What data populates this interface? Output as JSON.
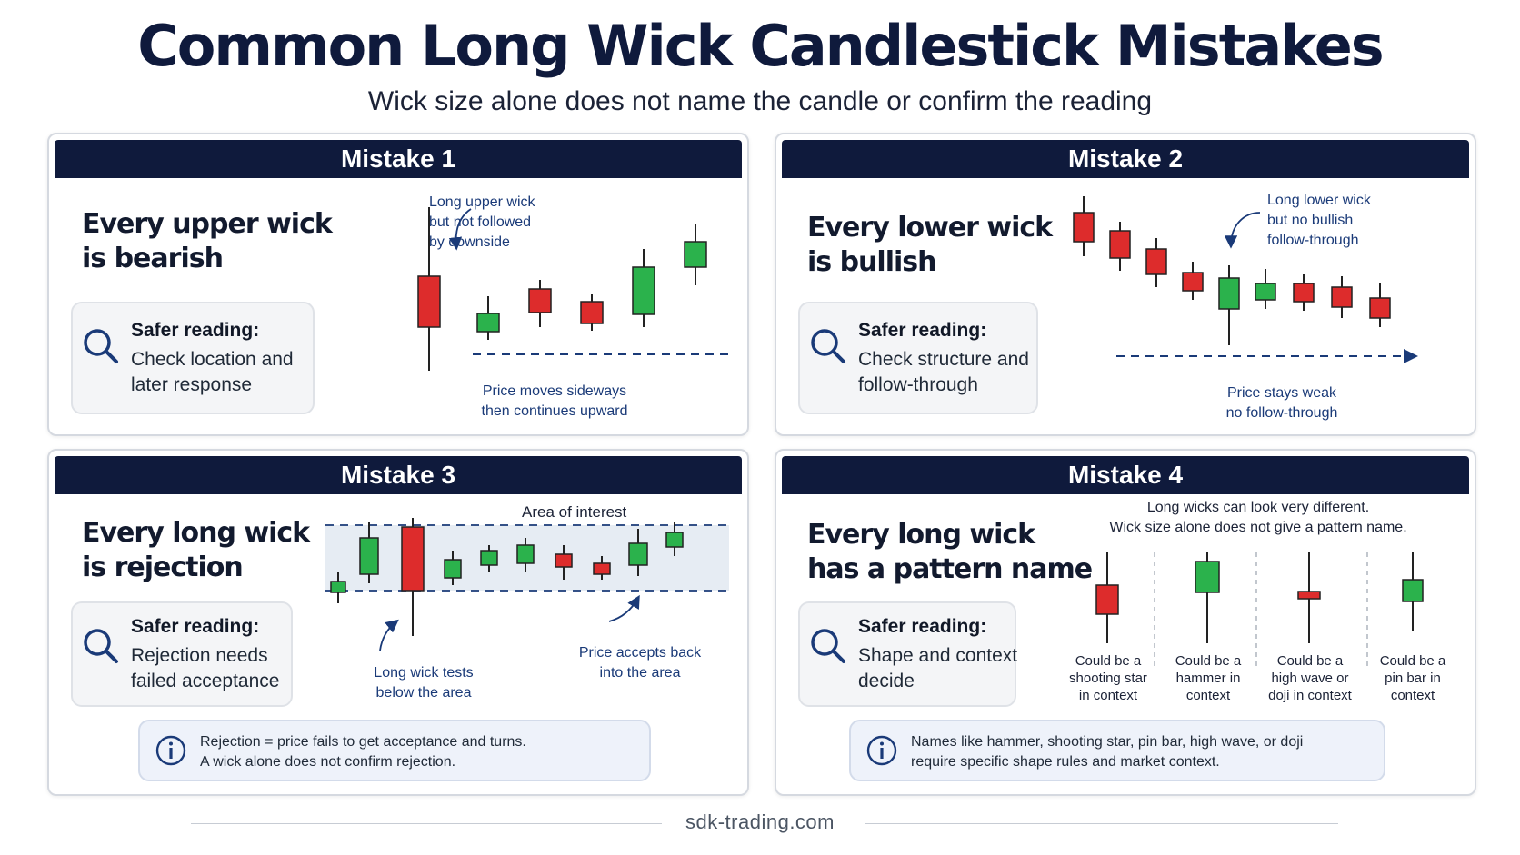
{
  "title": "Common Long Wick Candlestick Mistakes",
  "subtitle": "Wick size alone does not name the candle or confirm the reading",
  "colors": {
    "navy": "#0f1a3c",
    "bullish_green": "#2bb24c",
    "bearish_red": "#dd2c2c",
    "annotation_blue": "#1a3a78",
    "zone_fill": "#e6ecf3"
  },
  "panels": [
    {
      "header": "Mistake 1",
      "claim": [
        "Every upper wick",
        "is bearish"
      ],
      "safer_title": "Safer reading:",
      "safer_body": [
        "Check location and",
        "later response"
      ],
      "annotations": {
        "top_note": [
          "Long upper wick",
          "but not followed",
          "by downside"
        ],
        "bottom_note": [
          "Price moves sideways",
          "then continues upward"
        ]
      }
    },
    {
      "header": "Mistake 2",
      "claim": [
        "Every lower wick",
        "is bullish"
      ],
      "safer_title": "Safer reading:",
      "safer_body": [
        "Check structure and",
        "follow-through"
      ],
      "annotations": {
        "top_note": [
          "Long lower wick",
          "but no bullish",
          "follow-through"
        ],
        "bottom_note": [
          "Price stays weak",
          "no follow-through"
        ]
      }
    },
    {
      "header": "Mistake 3",
      "claim": [
        "Every long wick",
        "is rejection"
      ],
      "safer_title": "Safer reading:",
      "safer_body": [
        "Rejection needs",
        "failed acceptance"
      ],
      "annotations": {
        "zone_label": "Area of interest",
        "left_note": [
          "Long wick tests",
          "below the area"
        ],
        "right_note": [
          "Price accepts back",
          "into the area"
        ]
      },
      "info": [
        "Rejection = price fails to get acceptance and turns.",
        "A wick alone does not confirm rejection."
      ]
    },
    {
      "header": "Mistake 4",
      "claim": [
        "Every long wick",
        "has a pattern name"
      ],
      "safer_title": "Safer reading:",
      "safer_body": [
        "Shape and context",
        "decide"
      ],
      "annotations": {
        "intro": [
          "Long wicks can look very different.",
          "Wick size alone does not give a pattern name."
        ],
        "labels": [
          [
            "Could be a",
            "shooting star",
            "in context"
          ],
          [
            "Could be a",
            "hammer in",
            "context"
          ],
          [
            "Could be a",
            "high wave or",
            "doji in context"
          ],
          [
            "Could be a",
            "pin bar in",
            "context"
          ]
        ]
      },
      "info": [
        "Names like hammer, shooting star, pin bar, high wave, or doji",
        "require specific shape rules and market context."
      ]
    }
  ],
  "footer": "sdk-trading.com"
}
